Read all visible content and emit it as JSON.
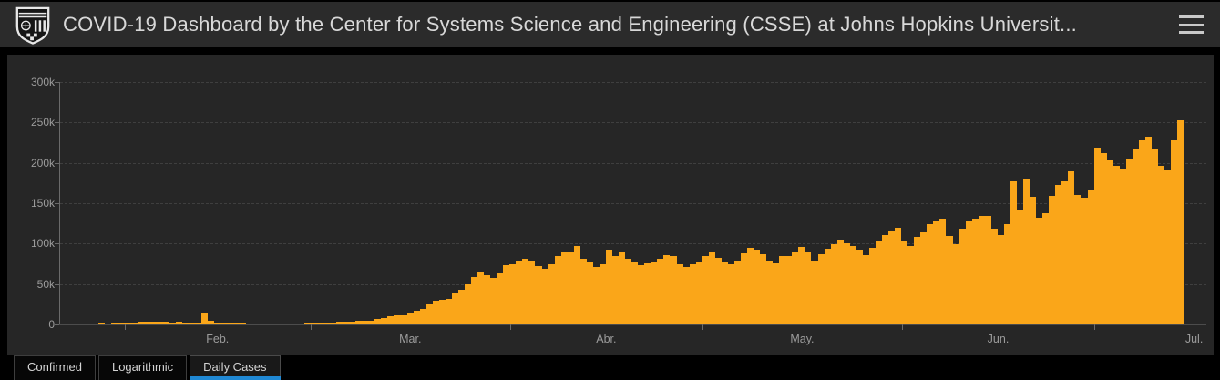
{
  "header": {
    "title": "COVID-19 Dashboard by the Center for Systems Science and Engineering (CSSE) at Johns Hopkins Universit...",
    "logo_icon": "johns-hopkins-shield-logo",
    "menu_icon": "hamburger-menu-icon"
  },
  "tabs": [
    {
      "label": "Confirmed",
      "active": false
    },
    {
      "label": "Logarithmic",
      "active": false
    },
    {
      "label": "Daily Cases",
      "active": true
    }
  ],
  "colors": {
    "page_bg": "#000000",
    "header_bg": "#2b2b2b",
    "panel_bg": "#262626",
    "bar": "#faa619",
    "grid": "#3f3f3f",
    "axis": "#6a6a6a",
    "tick_text": "#9b9b9b",
    "title_text": "#d8d8d8",
    "active_tab_underline": "#1f88d4"
  },
  "chart_data": {
    "type": "bar",
    "title": "Daily Cases",
    "xlabel": "",
    "ylabel": "",
    "ylim": [
      0,
      300000
    ],
    "grid": "horizontal-dashed",
    "legend": "none",
    "y_ticks": [
      {
        "label": "0",
        "value": 0
      },
      {
        "label": "50k",
        "value": 50000
      },
      {
        "label": "100k",
        "value": 100000
      },
      {
        "label": "150k",
        "value": 150000
      },
      {
        "label": "200k",
        "value": 200000
      },
      {
        "label": "250k",
        "value": 250000
      },
      {
        "label": "300k",
        "value": 300000
      }
    ],
    "x_ticks": [
      {
        "label": "Feb.",
        "boundary_day": 10,
        "label_center_day": 24.5
      },
      {
        "label": "Mar.",
        "boundary_day": 39,
        "label_center_day": 54.5
      },
      {
        "label": "Abr.",
        "boundary_day": 70,
        "label_center_day": 85
      },
      {
        "label": "May.",
        "boundary_day": 100,
        "label_center_day": 115.5
      },
      {
        "label": "Jun.",
        "boundary_day": 131,
        "label_center_day": 146
      },
      {
        "label": "Jul.",
        "boundary_day": 161,
        "label_center_day": 176.5
      }
    ],
    "values": [
      600,
      700,
      900,
      700,
      700,
      800,
      1800,
      1500,
      2000,
      2100,
      2600,
      2800,
      3200,
      3900,
      3700,
      3200,
      3400,
      2700,
      3000,
      2600,
      2100,
      2000,
      15200,
      4000,
      2600,
      2200,
      2100,
      2000,
      1800,
      900,
      1000,
      1200,
      1000,
      600,
      900,
      1100,
      1400,
      1500,
      1800,
      2000,
      2200,
      2500,
      2700,
      2900,
      3200,
      3900,
      4000,
      4200,
      4700,
      6300,
      7500,
      9900,
      10900,
      11500,
      13900,
      16500,
      19700,
      24300,
      28900,
      30500,
      31200,
      39600,
      42500,
      49200,
      58700,
      64200,
      61000,
      57700,
      63200,
      72800,
      74600,
      79500,
      81000,
      79400,
      71700,
      68700,
      73900,
      85100,
      89000,
      89600,
      97000,
      80800,
      76600,
      71100,
      74500,
      92000,
      84400,
      88600,
      81000,
      76300,
      73000,
      75500,
      77300,
      81600,
      85900,
      85100,
      74700,
      70800,
      74600,
      77700,
      84400,
      88600,
      82800,
      78400,
      74300,
      79300,
      88100,
      95000,
      92000,
      87400,
      79100,
      75300,
      84200,
      84700,
      90200,
      95800,
      90300,
      78600,
      87100,
      93200,
      99400,
      104700,
      100600,
      97400,
      92100,
      86000,
      95100,
      102300,
      110100,
      115700,
      119400,
      103100,
      97100,
      108500,
      113900,
      124100,
      128700,
      131300,
      109300,
      99200,
      118200,
      126900,
      130700,
      133800,
      134100,
      118800,
      110700,
      123900,
      177600,
      142000,
      181000,
      158000,
      131500,
      137500,
      158500,
      172500,
      177500,
      189000,
      160500,
      157000,
      165500,
      219000,
      212000,
      203000,
      196000,
      193000,
      205000,
      216000,
      228000,
      232000,
      217000,
      196000,
      191000,
      228000,
      253000
    ]
  }
}
